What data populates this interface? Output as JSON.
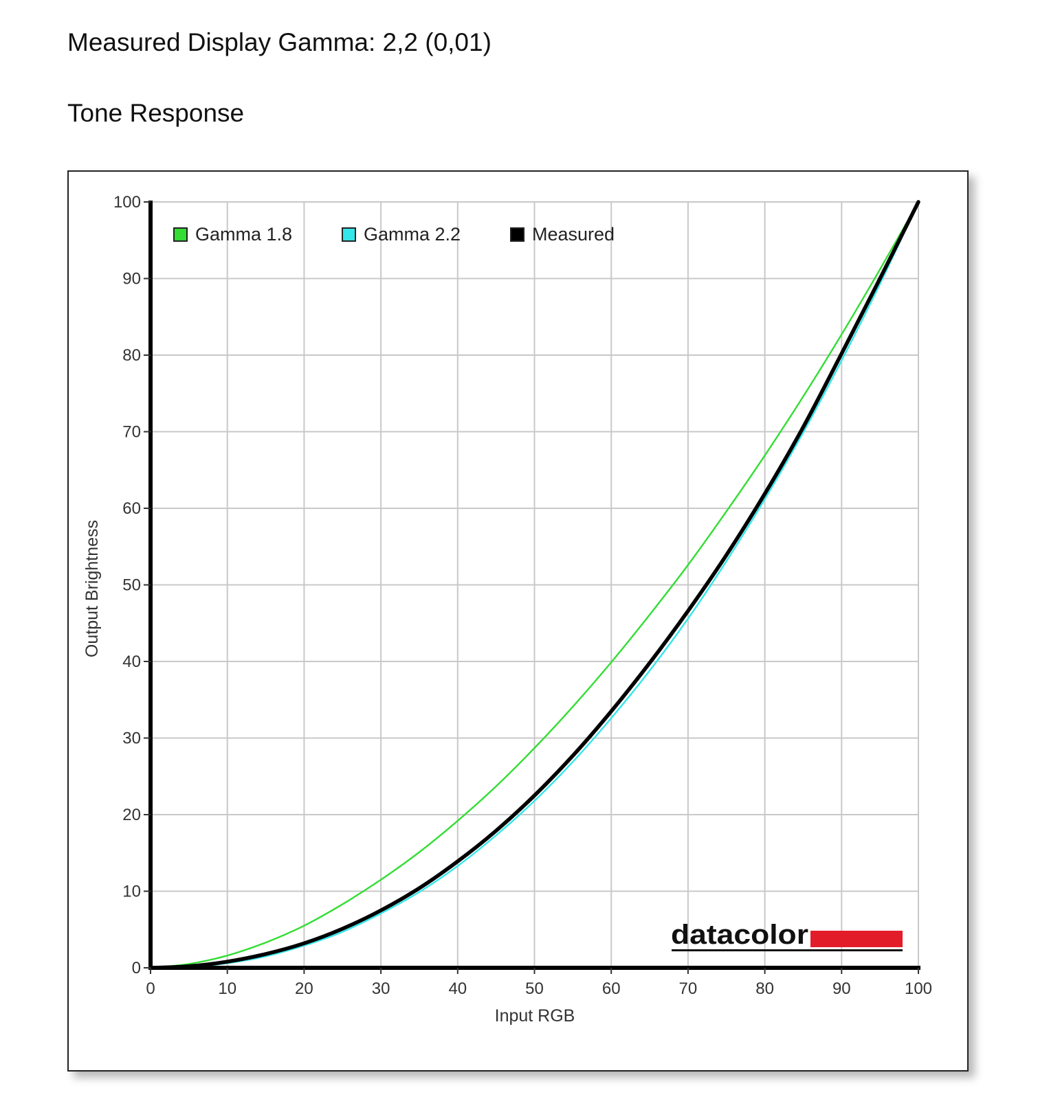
{
  "header": {
    "gamma_line": "Measured Display Gamma: 2,2 (0,01)",
    "section_title": "Tone Response"
  },
  "chart_data": {
    "type": "line",
    "xlabel": "Input RGB",
    "ylabel": "Output Brightness",
    "xlim": [
      0,
      100
    ],
    "ylim": [
      0,
      100
    ],
    "xticks": [
      0,
      10,
      20,
      30,
      40,
      50,
      60,
      70,
      80,
      90,
      100
    ],
    "yticks": [
      0,
      10,
      20,
      30,
      40,
      50,
      60,
      70,
      80,
      90,
      100
    ],
    "grid": true,
    "legend_position": "top-left",
    "x": [
      0,
      5,
      10,
      15,
      20,
      25,
      30,
      35,
      40,
      45,
      50,
      55,
      60,
      65,
      70,
      75,
      80,
      85,
      90,
      95,
      100
    ],
    "series": [
      {
        "name": "Gamma 1.8",
        "color": "#33dd33",
        "values": [
          0,
          0.5,
          1.6,
          3.3,
          5.5,
          8.3,
          11.5,
          15.1,
          19.2,
          23.7,
          28.7,
          34.1,
          39.9,
          46.1,
          52.6,
          59.6,
          66.9,
          74.6,
          82.7,
          91.2,
          100
        ]
      },
      {
        "name": "Gamma 2.2",
        "color": "#33e6ea",
        "values": [
          0,
          0.1,
          0.6,
          1.5,
          2.9,
          4.7,
          7.1,
          9.9,
          13.3,
          17.3,
          21.8,
          26.9,
          32.6,
          38.8,
          45.6,
          53.1,
          61.2,
          69.9,
          79.3,
          89.3,
          100
        ]
      },
      {
        "name": "Measured",
        "color": "#000000",
        "values": [
          0,
          0.2,
          0.8,
          1.8,
          3.2,
          5.1,
          7.5,
          10.4,
          13.9,
          17.9,
          22.5,
          27.7,
          33.5,
          39.8,
          46.6,
          53.9,
          61.9,
          70.6,
          80.2,
          90.0,
          100
        ]
      }
    ]
  },
  "logo": {
    "text": "datacolor",
    "accent_color": "#e31c2a"
  }
}
